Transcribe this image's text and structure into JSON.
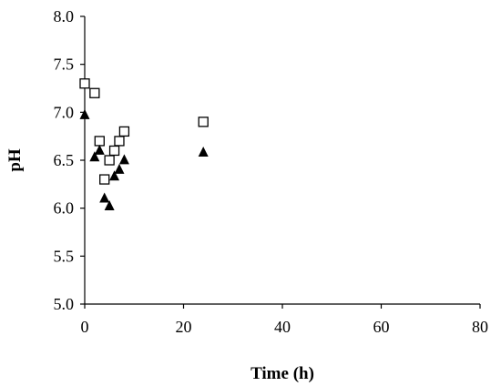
{
  "chart_data": {
    "type": "scatter",
    "title": "",
    "xlabel": "Time (h)",
    "ylabel": "pH",
    "xlim": [
      0,
      80
    ],
    "ylim": [
      5.0,
      8.0
    ],
    "x_ticks": [
      "0",
      "20",
      "40",
      "60",
      "80"
    ],
    "y_ticks": [
      "5.0",
      "5.5",
      "6.0",
      "6.5",
      "7.0",
      "7.5",
      "8.0"
    ],
    "grid": false,
    "legend": "none",
    "series": [
      {
        "marker": "open-square",
        "color": "#000000",
        "points": [
          {
            "x": 0,
            "y": 7.3
          },
          {
            "x": 2,
            "y": 7.2
          },
          {
            "x": 3,
            "y": 6.7
          },
          {
            "x": 4,
            "y": 6.3
          },
          {
            "x": 5,
            "y": 6.5
          },
          {
            "x": 6,
            "y": 6.6
          },
          {
            "x": 7,
            "y": 6.7
          },
          {
            "x": 8,
            "y": 6.8
          },
          {
            "x": 24,
            "y": 6.9
          }
        ]
      },
      {
        "marker": "filled-triangle",
        "color": "#000000",
        "points": [
          {
            "x": 0,
            "y": 6.97
          },
          {
            "x": 2,
            "y": 6.53
          },
          {
            "x": 3,
            "y": 6.6
          },
          {
            "x": 4,
            "y": 6.1
          },
          {
            "x": 5,
            "y": 6.02
          },
          {
            "x": 6,
            "y": 6.33
          },
          {
            "x": 7,
            "y": 6.4
          },
          {
            "x": 8,
            "y": 6.5
          },
          {
            "x": 24,
            "y": 6.58
          }
        ]
      }
    ]
  }
}
